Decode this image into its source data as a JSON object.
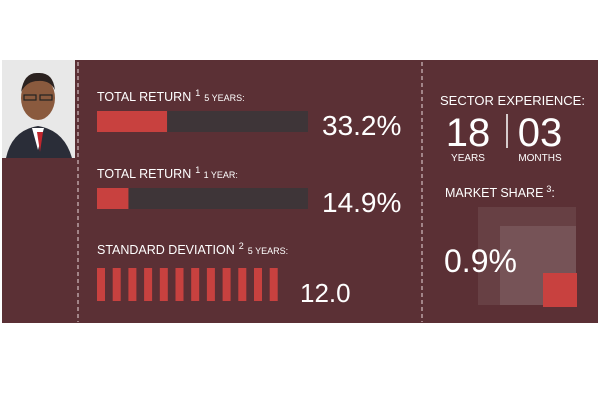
{
  "returns": [
    {
      "label": "TOTAL RETURN",
      "note": "1",
      "period": "5 YEARS:",
      "value": 33.2,
      "value_label": "33.2%"
    },
    {
      "label": "TOTAL RETURN",
      "note": "1",
      "period": "1 YEAR:",
      "value": 14.9,
      "value_label": "14.9%"
    }
  ],
  "std_dev": {
    "label": "STANDARD DEVIATION",
    "note": "2",
    "period": "5 YEARS:",
    "value_label": "12.0"
  },
  "sector_experience": {
    "title": "SECTOR EXPERIENCE:",
    "years": "18",
    "years_label": "YEARS",
    "months": "03",
    "months_label": "MONTHS"
  },
  "market_share": {
    "title": "MARKET SHARE",
    "note": "3",
    "value_label": "0.9%"
  }
}
